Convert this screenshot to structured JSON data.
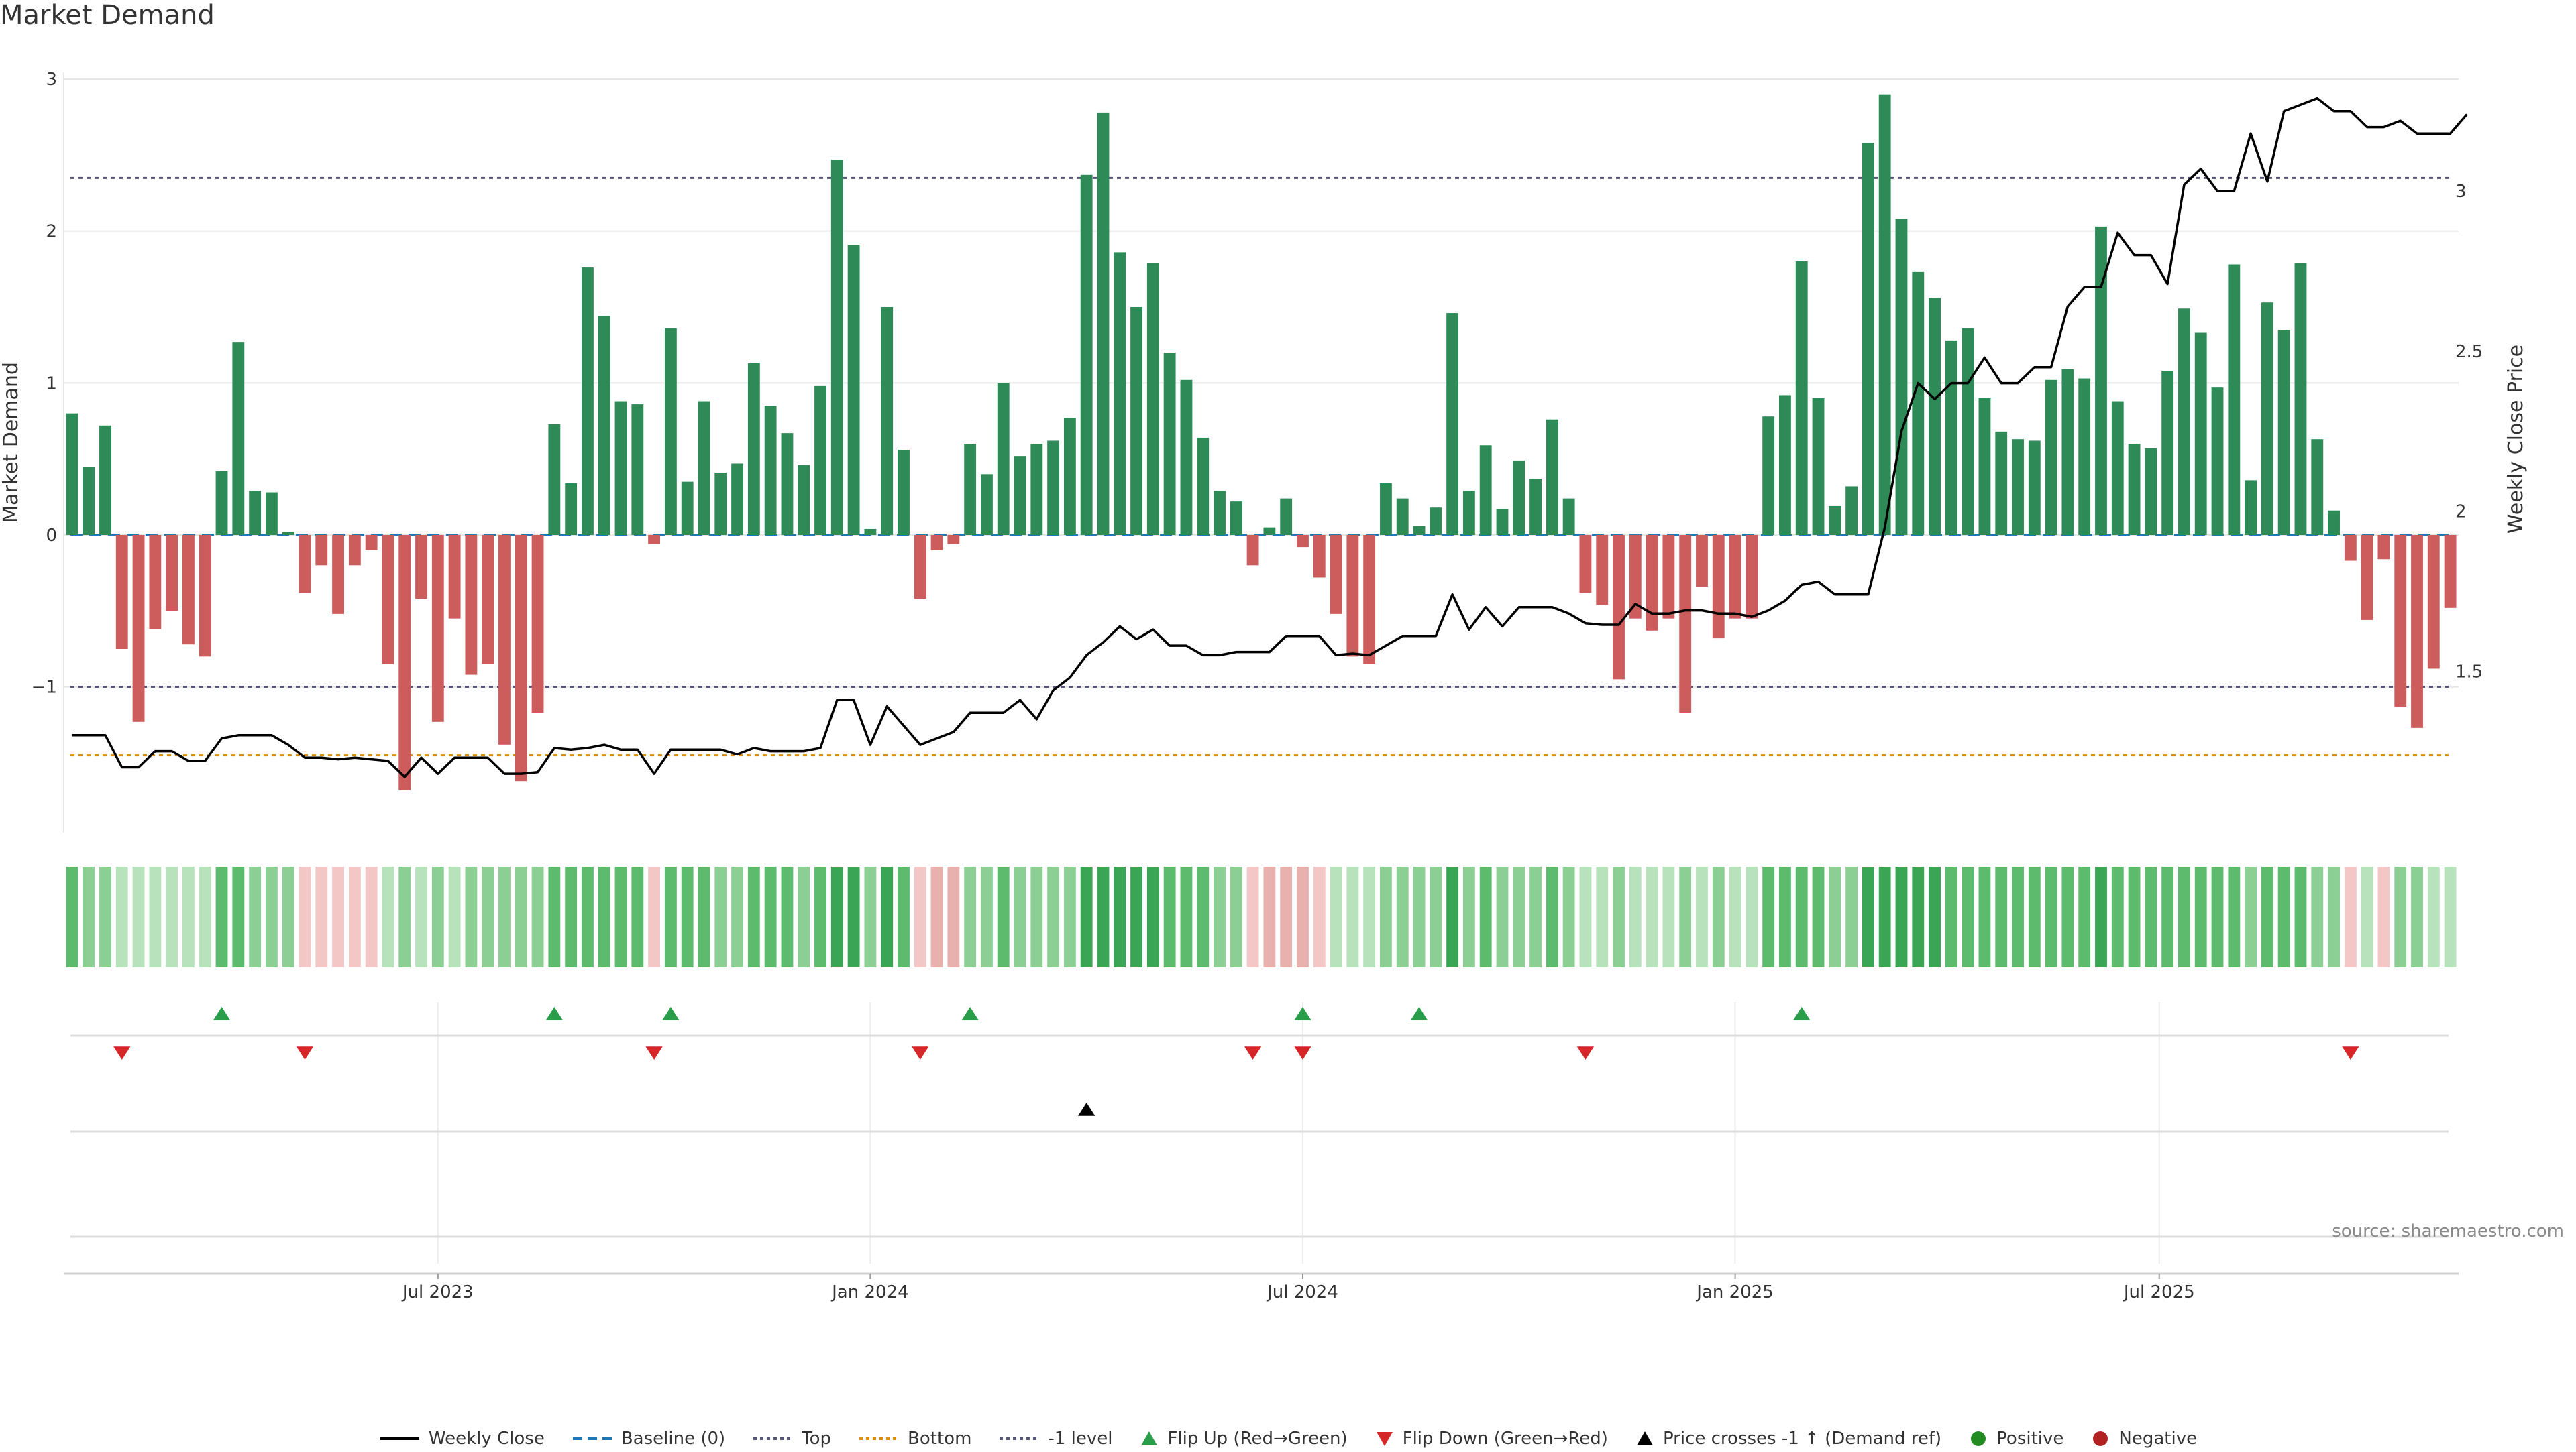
{
  "title": "Market Demand",
  "source": "source: sharemaestro.com",
  "chart_data": {
    "type": "bar",
    "title": "Market Demand",
    "ylabel_left": "Market Demand",
    "ylabel_right": "Weekly Close Price",
    "ylim_left": [
      -1.95,
      3.0
    ],
    "ylim_right": [
      1.0,
      3.35
    ],
    "yticks_left": [
      {
        "v": 3,
        "label": "3"
      },
      {
        "v": 2,
        "label": "2"
      },
      {
        "v": 1,
        "label": "1"
      },
      {
        "v": 0,
        "label": "0"
      },
      {
        "v": -1,
        "label": "−1"
      }
    ],
    "yticks_right": [
      {
        "v": 3,
        "label": "3"
      },
      {
        "v": 2.5,
        "label": "2.5"
      },
      {
        "v": 2,
        "label": "2"
      },
      {
        "v": 1.5,
        "label": "1.5"
      }
    ],
    "x_start_week": -22,
    "xticks": [
      {
        "week": 0,
        "label": "Jul 2023"
      },
      {
        "week": 26,
        "label": "Jan 2024"
      },
      {
        "week": 52,
        "label": "Jul 2024"
      },
      {
        "week": 78,
        "label": "Jan 2025"
      },
      {
        "week": 103.5,
        "label": "Jul 2025"
      }
    ],
    "reference_lines": {
      "top": 2.35,
      "bottom": -1.45,
      "minus_one": -1.0,
      "baseline": 0
    },
    "demand": [
      0.8,
      0.45,
      0.72,
      -0.75,
      -1.23,
      -0.62,
      -0.5,
      -0.72,
      -0.8,
      0.42,
      1.27,
      0.29,
      0.28,
      0.02,
      -0.38,
      -0.2,
      -0.52,
      -0.2,
      -0.1,
      -0.85,
      -1.68,
      -0.42,
      -1.23,
      -0.55,
      -0.92,
      -0.85,
      -1.38,
      -1.62,
      -1.17,
      0.73,
      0.34,
      1.76,
      1.44,
      0.88,
      0.86,
      -0.06,
      1.36,
      0.35,
      0.88,
      0.41,
      0.47,
      1.13,
      0.85,
      0.67,
      0.46,
      0.98,
      2.47,
      1.91,
      0.04,
      1.5,
      0.56,
      -0.42,
      -0.1,
      -0.06,
      0.6,
      0.4,
      1.0,
      0.52,
      0.6,
      0.62,
      0.77,
      2.37,
      2.78,
      1.86,
      1.5,
      1.79,
      1.2,
      1.02,
      0.64,
      0.29,
      0.22,
      -0.2,
      0.05,
      0.24,
      -0.08,
      -0.28,
      -0.52,
      -0.8,
      -0.85,
      0.34,
      0.24,
      0.06,
      0.18,
      1.46,
      0.29,
      0.59,
      0.17,
      0.49,
      0.37,
      0.76,
      0.24,
      -0.38,
      -0.46,
      -0.95,
      -0.55,
      -0.63,
      -0.55,
      -1.17,
      -0.34,
      -0.68,
      -0.55,
      -0.55,
      0.78,
      0.92,
      1.8,
      0.9,
      0.19,
      0.32,
      2.58,
      2.9,
      2.08,
      1.73,
      1.56,
      1.28,
      1.36,
      0.9,
      0.68,
      0.63,
      0.62,
      1.02,
      1.09,
      1.03,
      2.03,
      0.88,
      0.6,
      0.57,
      1.08,
      1.49,
      1.33,
      0.97,
      1.78,
      0.36,
      1.53,
      1.35,
      1.79,
      0.63,
      0.16,
      -0.17,
      -0.56,
      -0.16,
      -1.13,
      -1.27,
      -0.88,
      -0.48
    ],
    "close": [
      1.3,
      1.3,
      1.3,
      1.2,
      1.2,
      1.25,
      1.25,
      1.22,
      1.22,
      1.29,
      1.3,
      1.3,
      1.3,
      1.27,
      1.23,
      1.23,
      1.225,
      1.23,
      1.225,
      1.22,
      1.17,
      1.23,
      1.18,
      1.23,
      1.23,
      1.23,
      1.18,
      1.18,
      1.185,
      1.26,
      1.255,
      1.26,
      1.27,
      1.255,
      1.255,
      1.18,
      1.255,
      1.255,
      1.255,
      1.255,
      1.24,
      1.26,
      1.25,
      1.25,
      1.25,
      1.26,
      1.41,
      1.41,
      1.27,
      1.39,
      1.33,
      1.27,
      1.29,
      1.31,
      1.37,
      1.37,
      1.37,
      1.41,
      1.35,
      1.44,
      1.48,
      1.55,
      1.59,
      1.64,
      1.6,
      1.63,
      1.58,
      1.58,
      1.55,
      1.55,
      1.56,
      1.56,
      1.56,
      1.61,
      1.61,
      1.61,
      1.55,
      1.555,
      1.55,
      1.58,
      1.61,
      1.61,
      1.61,
      1.74,
      1.63,
      1.7,
      1.64,
      1.7,
      1.7,
      1.7,
      1.68,
      1.65,
      1.645,
      1.645,
      1.71,
      1.68,
      1.68,
      1.69,
      1.69,
      1.68,
      1.68,
      1.67,
      1.69,
      1.72,
      1.77,
      1.78,
      1.74,
      1.74,
      1.74,
      1.95,
      2.25,
      2.4,
      2.35,
      2.4,
      2.4,
      2.48,
      2.4,
      2.4,
      2.45,
      2.45,
      2.64,
      2.7,
      2.7,
      2.87,
      2.8,
      2.8,
      2.71,
      3.02,
      3.07,
      3.0,
      3.0,
      3.18,
      3.03,
      3.25,
      3.27,
      3.29,
      3.25,
      3.25,
      3.2,
      3.2,
      3.22,
      3.18,
      3.18,
      3.18,
      3.24
    ],
    "heat_levels": [
      2,
      3,
      3,
      4,
      4,
      4,
      4,
      4,
      4,
      2,
      2,
      3,
      3,
      3,
      5,
      5,
      5,
      5,
      5,
      4,
      3,
      4,
      3,
      4,
      3,
      3,
      3,
      3,
      3,
      2,
      2,
      2,
      2,
      2,
      2,
      5,
      2,
      2,
      2,
      3,
      3,
      2,
      2,
      2,
      3,
      2,
      1,
      1,
      3,
      1,
      2,
      5,
      6,
      6,
      3,
      3,
      2,
      3,
      3,
      3,
      3,
      1,
      1,
      1,
      1,
      1,
      2,
      2,
      2,
      3,
      3,
      5,
      6,
      6,
      6,
      5,
      4,
      4,
      4,
      3,
      3,
      3,
      3,
      1,
      3,
      2,
      3,
      3,
      3,
      2,
      3,
      4,
      4,
      3,
      4,
      4,
      4,
      3,
      4,
      3,
      4,
      4,
      2,
      2,
      2,
      2,
      3,
      3,
      1,
      1,
      1,
      1,
      1,
      2,
      2,
      2,
      2,
      2,
      2,
      2,
      2,
      2,
      1,
      2,
      2,
      2,
      2,
      2,
      2,
      2,
      2,
      3,
      2,
      2,
      2,
      3,
      3,
      5,
      4,
      5,
      3,
      3,
      4,
      4
    ],
    "flip_up_weeks": [
      -13,
      7,
      14,
      32,
      52,
      59,
      82
    ],
    "flip_down_weeks": [
      -19,
      -8,
      13,
      29,
      49,
      52,
      69,
      115
    ],
    "price_cross_weeks": [
      39
    ]
  },
  "legend": [
    {
      "key": "weekly-close",
      "label": "Weekly Close",
      "symbol": "line",
      "color": "#000000"
    },
    {
      "key": "baseline",
      "label": "Baseline (0)",
      "symbol": "dash",
      "color": "#1f77b4"
    },
    {
      "key": "top",
      "label": "Top",
      "symbol": "dot",
      "color": "#555577"
    },
    {
      "key": "bottom",
      "label": "Bottom",
      "symbol": "dot",
      "color": "#e08a00"
    },
    {
      "key": "minus-one",
      "label": "-1 level",
      "symbol": "dot",
      "color": "#555577"
    },
    {
      "key": "flip-up",
      "label": "Flip Up (Red→Green)",
      "symbol": "tri-up",
      "color": "#2a9d4a"
    },
    {
      "key": "flip-down",
      "label": "Flip Down (Green→Red)",
      "symbol": "tri-down",
      "color": "#d62728"
    },
    {
      "key": "price-cross",
      "label": "Price crosses -1 ↑ (Demand ref)",
      "symbol": "tri-up",
      "color": "#000000"
    },
    {
      "key": "positive",
      "label": "Positive",
      "symbol": "circle",
      "color": "#228b22"
    },
    {
      "key": "negative",
      "label": "Negative",
      "symbol": "circle",
      "color": "#b22222"
    }
  ],
  "colors": {
    "positive_bar": "#2e8b57",
    "negative_bar": "#cd5c5c",
    "line": "#000000",
    "heat_pos": [
      "#3aa655",
      "#5dbb6d",
      "#8ccf94",
      "#b7e2bb"
    ],
    "heat_neg": [
      "#f3c7c5",
      "#e8b1ae",
      "#d99290"
    ]
  }
}
